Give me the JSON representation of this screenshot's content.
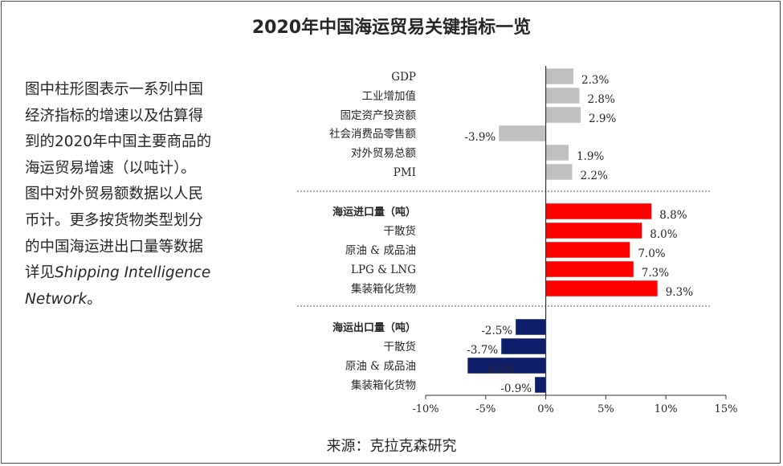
{
  "title": "2020年中国海运贸易关键指标一览",
  "description": {
    "line1": "图中柱形图表示一系列中国",
    "line2": "经济指标的增速以及估算得",
    "line3": "到的2020年中国主要商品的",
    "line4": "海运贸易增速（以吨计）。",
    "line5": "图中对外贸易额数据以人民",
    "line6": "币计。更多按货物类型划分",
    "line7": "的中国海运进出口量等数据",
    "line8_prefix": "详见",
    "line8_italic": "Shipping Intelligence",
    "line9_italic": "Network",
    "line9_suffix": "。"
  },
  "source": "来源：克拉克森研究",
  "chart_data": {
    "type": "bar",
    "orientation": "horizontal",
    "x_ticks": [
      "-10%",
      "-5%",
      "0%",
      "5%",
      "10%",
      "15%"
    ],
    "xlim": [
      -10,
      15
    ],
    "colors": {
      "economy": "#c0c0c0",
      "imports": "#ff0000",
      "exports": "#0d1f6b"
    },
    "groups": [
      {
        "key": "economy",
        "header": "",
        "items": [
          {
            "label": "GDP",
            "value": 2.3,
            "text": "2.3%"
          },
          {
            "label": "工业增加值",
            "value": 2.8,
            "text": "2.8%"
          },
          {
            "label": "固定资产投资额",
            "value": 2.9,
            "text": "2.9%"
          },
          {
            "label": "社会消费品零售额",
            "value": -3.9,
            "text": "-3.9%"
          },
          {
            "label": "对外贸易总额",
            "value": 1.9,
            "text": "1.9%"
          },
          {
            "label": "PMI",
            "value": 2.2,
            "text": "2.2%"
          }
        ]
      },
      {
        "key": "imports",
        "header": "海运进口量（吨）",
        "items": [
          {
            "label": "",
            "value": 8.8,
            "text": "8.8%"
          },
          {
            "label": "干散货",
            "value": 8.0,
            "text": "8.0%"
          },
          {
            "label": "原油 & 成品油",
            "value": 7.0,
            "text": "7.0%"
          },
          {
            "label": "LPG & LNG",
            "value": 7.3,
            "text": "7.3%"
          },
          {
            "label": "集装箱化货物",
            "value": 9.3,
            "text": "9.3%"
          }
        ]
      },
      {
        "key": "exports",
        "header": "海运出口量（吨）",
        "items": [
          {
            "label": "",
            "value": -2.5,
            "text": "-2.5%"
          },
          {
            "label": "干散货",
            "value": -3.7,
            "text": "-3.7%"
          },
          {
            "label": "原油 & 成品油",
            "value": -6.5,
            "text": "-6.5%"
          },
          {
            "label": "集装箱化货物",
            "value": -0.9,
            "text": "-0.9%"
          }
        ]
      }
    ]
  }
}
